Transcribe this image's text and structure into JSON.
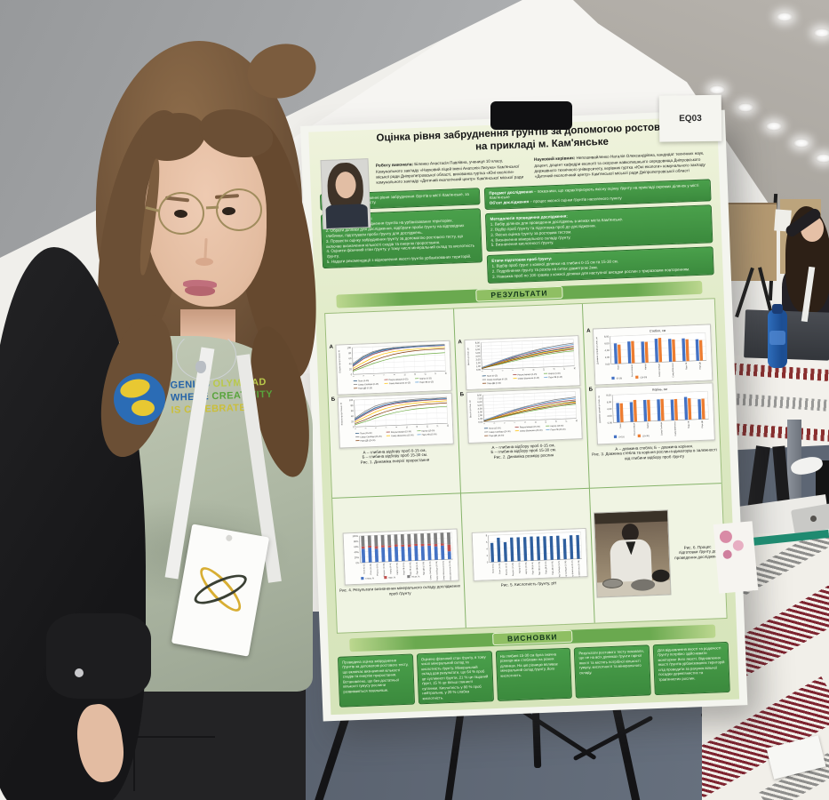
{
  "badge_label": "EQ03",
  "tshirt": {
    "line1a": "GENIUS",
    "line1b": " OLYMPIAD",
    "line2a": "WHERE",
    "line2b": " CREATIVITY",
    "line3": "IS CELEBRATED"
  },
  "poster": {
    "title": "Оцінка рівня забруднення ґрунтів за допомогою ростового тесту на прикладі м. Кам'янське",
    "author": {
      "label": "Роботу виконала:",
      "text": " Біленко Анастасія Павлівна, учениця 10 класу, Комунального закладу «Науковий ліцей імені Анатолія Лигуна» Кам'янської міської ради Дніпропетровської області, вихованка гуртка «Юні екологи» комунального закладу «Дитячий екологічний центр» Кам'янської міської ради"
    },
    "supervisor": {
      "label": "Науковий керівник:",
      "text": " Непошивайленко Наталія Олександрівна, кандидат технічних наук, доцент, доцент кафедри екології та охорони навколишнього середовища Дніпровського державного технічного університету, керівник гуртка «Юні екологи» комунального закладу «Дитячий екологічний центр» Кам'янської міської ради Дніпропетровської області"
    },
    "meta_label": "Мета",
    "meta_text": " полягала в дослідженні рівня забруднення ґрунтів в місті Кам'янське, за допомогою ростового тесту.",
    "tasks_label": "Завдання дослідження:",
    "tasks_text": "1. Проаналізувати забруднення ґрунтів на урбанізованих територіях.\n2. Обрати ділянки для дослідження, відібрати проби ґрунту на відповідних глибинах, підготувати проби ґрунту для досліджень.\n3. Провести оцінку забруднення ґрунту за допомогою ростового тесту, що включає визначення кількості сходів та енергію проростання.\n4. Оцінити фізичний стан ґрунту, у тому числі мінеральний склад та кислотність ґрунту.\n5. Надати рекомендації з відновлення якості ґрунтів урбанізованих територій.",
    "subject_label": "Предмет дослідження",
    "subject_text": " – показники, що характеризують якісну оцінку ґрунту на прикладі окремих ділянок у місті Кам'янське",
    "object_label": "Об'єкт дослідження",
    "object_text": " – процес якісної оцінки ґрунтів населеного пункту",
    "method_label": "Методологія проведення дослідження:",
    "method_text": "1. Вибір ділянок для проведення досліджень в межах міста Кам'янське.\n2. Відбір проб ґрунту та підготовка проб до дослідження.\n3. Якісна оцінка ґрунту за ростовим тестом.\n4. Визначення мінерального складу ґрунту.\n5. Визначення кислотності ґрунту.",
    "stages_label": "Етапи підготовки проб ґрунту:",
    "stages_text": "1. Відбір проб ґрунт з кожної ділянки на глибині 0-15 см та 15-30 см.\n2. Подрібнення ґрунту та розсів на ситах діаметром 2мм.\n3. Наважка проб по 100 грамів з кожної ділянки для наступної висадки рослин з триразовим повторенням.",
    "results_header": "РЕЗУЛЬТАТИ",
    "conclusions_header": "ВИСНОВКИ",
    "captions": {
      "fig1": "А – глибина відбору проб 0-15 см,\nБ – глибина відбору проб 15-30 см.\nРис. 1. Динаміка енергії проростання",
      "fig2": "А – глибина відбору проб 0-15 см,\nБ – глибина відбору проб 15-30 см.\nРис. 2. Динаміка розміру рослин",
      "fig3": "А – довжина стебла; Б – довжина коріння.\nРис. 3. Довжина стебла та коріння рослин-індикаторів в залежності від глибини відбору проб ґрунту",
      "fig4": "Рис. 4. Результати визначення мінерального складу досліджених проб ґрунту",
      "fig5": "Рис. 5. Кислотність ґрунту, рН",
      "fig6": "Рис. 6. Процес підготовки ґрунту до проведення дослідження"
    },
    "conclusions": [
      "Проведена оцінка забруднення ґрунтів за допомогою ростового тесту, що включає визначення кількості сходів та енергію проростання. Встановлено, що без достатньої кількості гумусу рослини розвиваються повільніше.",
      "Оцінено фізичний стан ґрунту, в тому числі мінеральний склад та кислотність ґрунту. Мінеральний склад дав результати, що 64 % проб це суглинисті ґрунти, 21 % це піщаний ґрунт, 15 % це більш глинисті суглинки. Кислотність у 80 % проб нейтральна, у 20 % слабка кислотність.",
      "На глибині 15-30 см була значна різниця між стеблами на різних ділянках. На цю різницю впливає мінеральний склад ґрунту, його кислотність.",
      "Результати ростового тесту показали, що не на всіх ділянках ґрунти гарної якості та містять потрібної кількості гумусу, кислотності та мінерального складу.",
      "Для відновлення якості та родючості ґрунту потрібно здійснювати моніторинг його якості. Відновлення якості ґрунтів урбанізованих територій слід проводити за рахунок вільної посадки дерев'янистих та трав'янистих рослин."
    ]
  },
  "chart_data": [
    {
      "type": "line",
      "title": "Динаміка енергії проростання",
      "x": [
        "1",
        "3",
        "5",
        "7",
        "9",
        "11",
        "13",
        "15",
        "17",
        "20"
      ],
      "ylim": [
        0,
        100
      ],
      "yticks": [
        "0",
        "20",
        "40",
        "60",
        "80",
        "100"
      ],
      "ylabel": "Енергія проростання, %",
      "xlabel_h": 5,
      "legend_position": "bottom",
      "grid": true,
      "panels": [
        {
          "label": "А",
          "suffix": "(0-15)",
          "series": [
            {
              "name": "Поле",
              "color": "#1f4e79",
              "values": [
                35,
                62,
                78,
                88,
                92,
                94,
                95,
                96,
                96,
                96
              ]
            },
            {
              "name": "Рекультивація",
              "color": "#9e3a38",
              "values": [
                30,
                55,
                72,
                82,
                88,
                91,
                93,
                94,
                94,
                95
              ]
            },
            {
              "name": "Кар'єр",
              "color": "#70ad47",
              "values": [
                12,
                25,
                38,
                48,
                56,
                61,
                64,
                66,
                67,
                68
              ]
            },
            {
              "name": "Сквер Свободи",
              "color": "#7f7f7f",
              "values": [
                40,
                66,
                82,
                90,
                94,
                96,
                97,
                98,
                98,
                98
              ]
            },
            {
              "name": "Сквер Шевченка",
              "color": "#ffc000",
              "values": [
                22,
                42,
                60,
                72,
                79,
                83,
                85,
                86,
                87,
                88
              ]
            },
            {
              "name": "Парк ЛВ",
              "color": "#5b9bd5",
              "values": [
                33,
                58,
                75,
                85,
                90,
                92,
                94,
                95,
                95,
                96
              ]
            },
            {
              "name": "Парк ДВ",
              "color": "#843c0c",
              "values": [
                16,
                32,
                48,
                60,
                69,
                75,
                79,
                81,
                82,
                83
              ]
            }
          ]
        },
        {
          "label": "Б",
          "suffix": "(15-30)",
          "series": [
            {
              "name": "Поле",
              "color": "#1f4e79",
              "values": [
                28,
                50,
                68,
                78,
                85,
                88,
                90,
                91,
                92,
                92
              ]
            },
            {
              "name": "Рекультивація",
              "color": "#9e3a38",
              "values": [
                24,
                45,
                62,
                74,
                81,
                85,
                87,
                89,
                90,
                90
              ]
            },
            {
              "name": "Кар'єр",
              "color": "#70ad47",
              "values": [
                8,
                18,
                30,
                40,
                48,
                54,
                58,
                60,
                62,
                63
              ]
            },
            {
              "name": "Сквер Свободи",
              "color": "#7f7f7f",
              "values": [
                32,
                56,
                74,
                84,
                89,
                92,
                94,
                95,
                95,
                96
              ]
            },
            {
              "name": "Сквер Шевченка",
              "color": "#ffc000",
              "values": [
                18,
                35,
                52,
                64,
                72,
                77,
                80,
                82,
                83,
                84
              ]
            },
            {
              "name": "Парк ЛВ",
              "color": "#5b9bd5",
              "values": [
                26,
                48,
                66,
                77,
                84,
                87,
                89,
                91,
                91,
                92
              ]
            },
            {
              "name": "Парк ДВ",
              "color": "#843c0c",
              "values": [
                12,
                25,
                40,
                52,
                61,
                67,
                71,
                74,
                75,
                76
              ]
            }
          ]
        }
      ]
    },
    {
      "type": "line",
      "title": "Динаміка розміру рослин",
      "x": [
        "1",
        "3",
        "5",
        "7",
        "9",
        "11",
        "13",
        "15",
        "17",
        "20"
      ],
      "ylim": [
        0,
        8
      ],
      "yticks": [
        "0,00",
        "1,00",
        "2,00",
        "3,00",
        "4,00",
        "5,00",
        "6,00",
        "7,00",
        "8,00"
      ],
      "ylabel": "Висота рослин, см",
      "xlabel_h": 5,
      "legend_position": "bottom",
      "grid": true,
      "panels": [
        {
          "label": "А",
          "suffix": "(0-15)",
          "series": [
            {
              "name": "Поле",
              "color": "#1f4e79",
              "values": [
                0.4,
                1.2,
                2.0,
                2.8,
                3.4,
                4.0,
                4.5,
                4.9,
                5.2,
                5.5
              ]
            },
            {
              "name": "Рекультивація",
              "color": "#9e3a38",
              "values": [
                0.5,
                1.4,
                2.3,
                3.1,
                3.8,
                4.4,
                4.9,
                5.3,
                5.6,
                5.9
              ]
            },
            {
              "name": "Кар'єр",
              "color": "#70ad47",
              "values": [
                0.3,
                0.9,
                1.5,
                2.1,
                2.7,
                3.2,
                3.6,
                4.0,
                4.3,
                4.5
              ]
            },
            {
              "name": "Сквер Свободи",
              "color": "#7f7f7f",
              "values": [
                0.6,
                1.6,
                2.6,
                3.5,
                4.3,
                5.0,
                5.6,
                6.1,
                6.5,
                6.8
              ]
            },
            {
              "name": "Сквер Шевченка",
              "color": "#ffc000",
              "values": [
                0.4,
                1.1,
                1.9,
                2.6,
                3.2,
                3.8,
                4.3,
                4.7,
                5.0,
                5.3
              ]
            },
            {
              "name": "Парк ЛВ",
              "color": "#5b9bd5",
              "values": [
                0.5,
                1.5,
                2.5,
                3.3,
                4.1,
                4.7,
                5.3,
                5.7,
                6.1,
                6.4
              ]
            },
            {
              "name": "Парк ДВ",
              "color": "#843c0c",
              "values": [
                0.3,
                1.0,
                1.7,
                2.4,
                3.0,
                3.5,
                4.0,
                4.4,
                4.7,
                5.0
              ]
            }
          ]
        },
        {
          "label": "Б",
          "suffix": "(15-30)",
          "series": [
            {
              "name": "Поле",
              "color": "#1f4e79",
              "values": [
                0.3,
                1.0,
                1.7,
                2.4,
                3.0,
                3.6,
                4.1,
                4.5,
                4.8,
                5.1
              ]
            },
            {
              "name": "Рекультивація",
              "color": "#9e3a38",
              "values": [
                0.4,
                1.2,
                2.0,
                2.8,
                3.5,
                4.1,
                4.6,
                5.0,
                5.3,
                5.5
              ]
            },
            {
              "name": "Кар'єр",
              "color": "#70ad47",
              "values": [
                0.2,
                0.7,
                1.3,
                1.9,
                2.4,
                2.9,
                3.3,
                3.7,
                4.0,
                4.2
              ]
            },
            {
              "name": "Сквер Свободи",
              "color": "#7f7f7f",
              "values": [
                0.5,
                1.4,
                2.4,
                3.3,
                4.0,
                4.7,
                5.3,
                5.8,
                6.1,
                6.4
              ]
            },
            {
              "name": "Сквер Шевченка",
              "color": "#ffc000",
              "values": [
                0.3,
                1.0,
                1.7,
                2.4,
                3.0,
                3.5,
                4.0,
                4.4,
                4.7,
                4.9
              ]
            },
            {
              "name": "Парк ЛВ",
              "color": "#5b9bd5",
              "values": [
                0.4,
                1.3,
                2.3,
                3.1,
                3.8,
                4.4,
                5.0,
                5.4,
                5.8,
                6.0
              ]
            },
            {
              "name": "Парк ДВ",
              "color": "#843c0c",
              "values": [
                0.2,
                0.8,
                1.5,
                2.1,
                2.7,
                3.2,
                3.6,
                4.0,
                4.3,
                4.6
              ]
            }
          ]
        }
      ]
    },
    {
      "type": "groupbar",
      "categories": [
        "Поле",
        "Рекультивація",
        "Кар'єр",
        "Сквер Свободи",
        "Сквер Шевченка",
        "Парк ЛВ",
        "Парк ДВ"
      ],
      "ylim": [
        0,
        8
      ],
      "yticks": [
        "0,00",
        "2,00",
        "4,00",
        "6,00",
        "8,00"
      ],
      "ylabel": "Довжина органів рослин, см",
      "xlabel_h": 13,
      "series": [
        {
          "name": "(0-15)",
          "color": "#4472c4"
        },
        {
          "name": "(15-30)",
          "color": "#ed7d31"
        }
      ],
      "panels": [
        {
          "label": "А",
          "title": "Стебло, см",
          "values": [
            [
              5.9,
              6.3,
              6.1,
              6.8,
              6.6,
              6.6,
              6.2
            ],
            [
              5.5,
              6.4,
              6.0,
              7.0,
              6.4,
              6.3,
              5.9
            ]
          ]
        },
        {
          "label": "Б",
          "title": "Корінь, см",
          "values": [
            [
              5.6,
              5.7,
              6.2,
              6.2,
              6.0,
              6.6,
              5.8
            ],
            [
              5.5,
              6.3,
              6.2,
              6.3,
              6.1,
              6.2,
              5.9
            ]
          ]
        }
      ]
    },
    {
      "type": "stackbar",
      "categories": [
        "Поле (0-15)",
        "Поле (15-30)",
        "Рекульт. (0-15)",
        "Рекульт. (15-30)",
        "Кар'єр (0-15)",
        "Кар'єр (15-30)",
        "Парк ЛВ (0-15)",
        "Парк ЛВ (15-30)",
        "Парк ДВ (0-15)",
        "Парк ДВ (15-30)",
        "Сквер Свободи (0-15)",
        "Сквер Свободи (15-30)",
        "Сквер Шевченка (0-15)",
        "Сквер Шевченка (15-30)"
      ],
      "ylim": [
        0,
        100
      ],
      "yticks": [
        "0%",
        "20%",
        "40%",
        "60%",
        "80%",
        "100%"
      ],
      "xlabel_h": 15,
      "series": [
        {
          "name": "Глина, %",
          "color": "#4472c4",
          "values": [
            52,
            55,
            50,
            54,
            53,
            55,
            54,
            52,
            55,
            53,
            54,
            50,
            52,
            30
          ]
        },
        {
          "name": "Мул, %",
          "color": "#c0504d",
          "values": [
            8,
            7,
            9,
            8,
            7,
            8,
            7,
            9,
            7,
            8,
            7,
            9,
            8,
            25
          ]
        },
        {
          "name": "Пісок, %",
          "color": "#7f7f7f",
          "values": [
            40,
            38,
            41,
            38,
            40,
            37,
            39,
            39,
            38,
            39,
            39,
            41,
            40,
            45
          ]
        }
      ]
    },
    {
      "type": "bar",
      "categories": [
        "Поле (0-15)",
        "Поле (15-30)",
        "Рекульт. (0-15)",
        "Рекульт. (15-30)",
        "Кар'єр (0-15)",
        "Кар'єр (15-30)",
        "Парк ЛВ (0-15)",
        "Парк ЛВ (15-30)",
        "Парк ДВ (0-15)",
        "Парк ДВ (15-30)",
        "Сквер Свободи (0-15)",
        "Сквер Свободи (15-30)",
        "Сквер Шевченка (0-15)",
        "Сквер Шевченка (15-30)"
      ],
      "values": [
        5.7,
        7.2,
        5.8,
        7.1,
        7.1,
        7.1,
        7.2,
        7.1,
        7.1,
        7.1,
        7.1,
        6.1,
        7.1,
        7.1
      ],
      "color": "#2f5f9e",
      "ylim": [
        0,
        8
      ],
      "yticks": [
        "0",
        "2",
        "4",
        "6",
        "8"
      ],
      "xlabel_h": 15
    }
  ]
}
